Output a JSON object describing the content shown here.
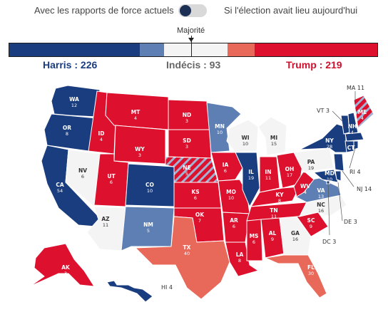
{
  "toggle": {
    "left_label": "Avec les rapports de force actuels",
    "right_label": "Si l'élection avait lieu aujourd'hui",
    "state": "off"
  },
  "majority_label": "Majorité",
  "bar_segments": [
    {
      "name": "harris_solid",
      "value": 191,
      "color": "#1a3d7f"
    },
    {
      "name": "harris_lean",
      "value": 35,
      "color": "#5e7fb3"
    },
    {
      "name": "undecided",
      "value": 93,
      "color": "#f4f4f4"
    },
    {
      "name": "trump_lean",
      "value": 40,
      "color": "#e8685a"
    },
    {
      "name": "trump_solid",
      "value": 179,
      "color": "#dd102e"
    }
  ],
  "totals": {
    "harris": "Harris : 226",
    "undecided": "Indécis : 93",
    "trump": "Trump : 219"
  },
  "colors": {
    "harris_solid": "#1a3d7f",
    "harris_lean": "#5e7fb3",
    "undecided": "#f4f4f4",
    "trump_lean": "#e8685a",
    "trump_solid": "#dd102e",
    "split": "#9fb3d4"
  },
  "states": [
    {
      "abbr": "WA",
      "ev": "12",
      "cat": "harris_solid"
    },
    {
      "abbr": "OR",
      "ev": "8",
      "cat": "harris_solid"
    },
    {
      "abbr": "CA",
      "ev": "54",
      "cat": "harris_solid"
    },
    {
      "abbr": "NV",
      "ev": "6",
      "cat": "undecided"
    },
    {
      "abbr": "ID",
      "ev": "4",
      "cat": "trump_solid"
    },
    {
      "abbr": "MT",
      "ev": "4",
      "cat": "trump_solid"
    },
    {
      "abbr": "WY",
      "ev": "3",
      "cat": "trump_solid"
    },
    {
      "abbr": "UT",
      "ev": "6",
      "cat": "trump_solid"
    },
    {
      "abbr": "AZ",
      "ev": "11",
      "cat": "undecided"
    },
    {
      "abbr": "CO",
      "ev": "10",
      "cat": "harris_solid"
    },
    {
      "abbr": "NM",
      "ev": "5",
      "cat": "harris_lean"
    },
    {
      "abbr": "ND",
      "ev": "3",
      "cat": "trump_solid"
    },
    {
      "abbr": "SD",
      "ev": "3",
      "cat": "trump_solid"
    },
    {
      "abbr": "NE",
      "ev": "5",
      "cat": "split"
    },
    {
      "abbr": "KS",
      "ev": "6",
      "cat": "trump_solid"
    },
    {
      "abbr": "OK",
      "ev": "7",
      "cat": "trump_solid"
    },
    {
      "abbr": "TX",
      "ev": "40",
      "cat": "trump_lean"
    },
    {
      "abbr": "MN",
      "ev": "10",
      "cat": "harris_lean"
    },
    {
      "abbr": "IA",
      "ev": "6",
      "cat": "trump_solid"
    },
    {
      "abbr": "MO",
      "ev": "10",
      "cat": "trump_solid"
    },
    {
      "abbr": "AR",
      "ev": "6",
      "cat": "trump_solid"
    },
    {
      "abbr": "LA",
      "ev": "8",
      "cat": "trump_solid"
    },
    {
      "abbr": "WI",
      "ev": "10",
      "cat": "undecided"
    },
    {
      "abbr": "IL",
      "ev": "19",
      "cat": "harris_solid"
    },
    {
      "abbr": "MI",
      "ev": "15",
      "cat": "undecided"
    },
    {
      "abbr": "IN",
      "ev": "11",
      "cat": "trump_solid"
    },
    {
      "abbr": "OH",
      "ev": "17",
      "cat": "trump_solid"
    },
    {
      "abbr": "KY",
      "ev": "8",
      "cat": "trump_solid"
    },
    {
      "abbr": "TN",
      "ev": "11",
      "cat": "trump_solid"
    },
    {
      "abbr": "MS",
      "ev": "6",
      "cat": "trump_solid"
    },
    {
      "abbr": "AL",
      "ev": "9",
      "cat": "trump_solid"
    },
    {
      "abbr": "GA",
      "ev": "16",
      "cat": "undecided"
    },
    {
      "abbr": "FL",
      "ev": "30",
      "cat": "trump_lean"
    },
    {
      "abbr": "SC",
      "ev": "9",
      "cat": "trump_solid"
    },
    {
      "abbr": "NC",
      "ev": "16",
      "cat": "undecided"
    },
    {
      "abbr": "VA",
      "ev": "13",
      "cat": "harris_lean"
    },
    {
      "abbr": "WV",
      "ev": "4",
      "cat": "trump_solid"
    },
    {
      "abbr": "PA",
      "ev": "19",
      "cat": "undecided"
    },
    {
      "abbr": "NY",
      "ev": "28",
      "cat": "harris_solid"
    },
    {
      "abbr": "VT",
      "ev": "3",
      "cat": "harris_solid"
    },
    {
      "abbr": "NH",
      "ev": "4",
      "cat": "harris_solid"
    },
    {
      "abbr": "ME",
      "ev": "4",
      "cat": "split"
    },
    {
      "abbr": "MA",
      "ev": "11",
      "cat": "harris_solid"
    },
    {
      "abbr": "CT",
      "ev": "7",
      "cat": "harris_solid"
    },
    {
      "abbr": "RI",
      "ev": "4",
      "cat": "harris_solid"
    },
    {
      "abbr": "NJ",
      "ev": "14",
      "cat": "harris_solid"
    },
    {
      "abbr": "DE",
      "ev": "3",
      "cat": "harris_solid"
    },
    {
      "abbr": "MD",
      "ev": "10",
      "cat": "harris_solid"
    },
    {
      "abbr": "DC",
      "ev": "3",
      "cat": "harris_solid"
    },
    {
      "abbr": "AK",
      "ev": "3",
      "cat": "trump_solid"
    },
    {
      "abbr": "HI",
      "ev": "4",
      "cat": "harris_solid"
    }
  ],
  "callouts": {
    "MA": "MA 11",
    "VT": "VT 3",
    "RI": "RI 4",
    "NJ": "NJ 14",
    "DE": "DE 3",
    "DC": "DC 3",
    "HI": "HI 4"
  }
}
